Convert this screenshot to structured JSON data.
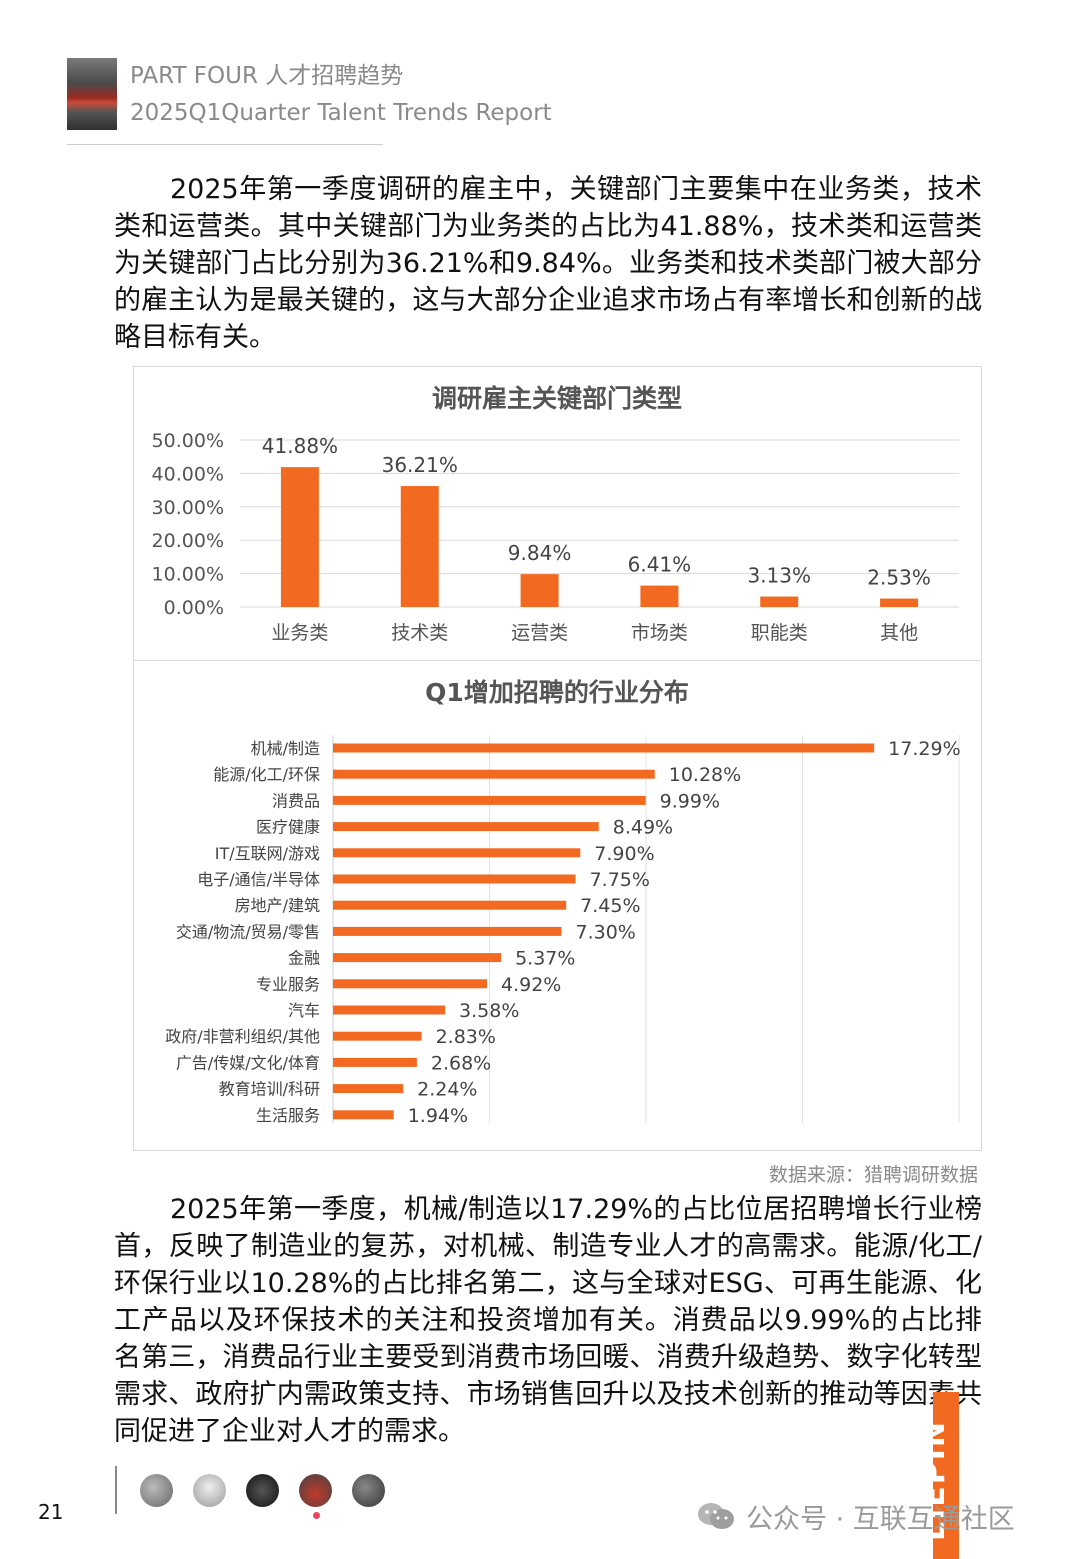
{
  "header": {
    "part_title": "PART FOUR 人才招聘趋势",
    "report_title": "2025Q1Quarter Talent Trends Report"
  },
  "paragraphs": {
    "intro": "2025年第一季度调研的雇主中，关键部门主要集中在业务类，技术类和运营类。其中关键部门为业务类的占比为41.88%，技术类和运营类为关键部门占比分别为36.21%和9.84%。业务类和技术类部门被大部分的雇主认为是最关键的，这与大部分企业追求市场占有率增长和创新的战略目标有关。",
    "analysis": "2025年第一季度，机械/制造以17.29%的占比位居招聘增长行业榜首，反映了制造业的复苏，对机械、制造专业人才的高需求。能源/化工/环保行业以10.28%的占比排名第二，这与全球对ESG、可再生能源、化工产品以及环保技术的关注和投资增加有关。消费品以9.99%的占比排名第三，消费品行业主要受到消费市场回暖、消费升级趋势、数字化转型需求、政府扩内需政策支持、市场销售回升以及技术创新的推动等因素共同促进了企业对人才的需求。"
  },
  "chart_data": [
    {
      "type": "bar",
      "title": "调研雇主关键部门类型",
      "categories": [
        "业务类",
        "技术类",
        "运营类",
        "市场类",
        "职能类",
        "其他"
      ],
      "values": [
        41.88,
        36.21,
        9.84,
        6.41,
        3.13,
        2.53
      ],
      "value_labels": [
        "41.88%",
        "36.21%",
        "9.84%",
        "6.41%",
        "3.13%",
        "2.53%"
      ],
      "yticks": [
        "0.00%",
        "10.00%",
        "20.00%",
        "30.00%",
        "40.00%",
        "50.00%"
      ],
      "ylim": [
        0,
        50
      ],
      "grid": true,
      "color": "#f26a21"
    },
    {
      "type": "bar",
      "orientation": "horizontal",
      "title": "Q1增加招聘的行业分布",
      "categories": [
        "机械/制造",
        "能源/化工/环保",
        "消费品",
        "医疗健康",
        "IT/互联网/游戏",
        "电子/通信/半导体",
        "房地产/建筑",
        "交通/物流/贸易/零售",
        "金融",
        "专业服务",
        "汽车",
        "政府/非营利组织/其他",
        "广告/传媒/文化/体育",
        "教育培训/科研",
        "生活服务"
      ],
      "values": [
        17.29,
        10.28,
        9.99,
        8.49,
        7.9,
        7.75,
        7.45,
        7.3,
        5.37,
        4.92,
        3.58,
        2.83,
        2.68,
        2.24,
        1.94
      ],
      "value_labels": [
        "17.29%",
        "10.28%",
        "9.99%",
        "8.49%",
        "7.90%",
        "7.75%",
        "7.45%",
        "7.30%",
        "5.37%",
        "4.92%",
        "3.58%",
        "2.83%",
        "2.68%",
        "2.24%",
        "1.94%"
      ],
      "xlim": [
        0,
        20
      ],
      "grid": true,
      "color": "#f26a21"
    }
  ],
  "source": "数据来源：猎聘调研数据",
  "footer": {
    "page_number": "21",
    "watermark": "公众号 · 互联互通社区",
    "brand": "LIEPIN"
  }
}
